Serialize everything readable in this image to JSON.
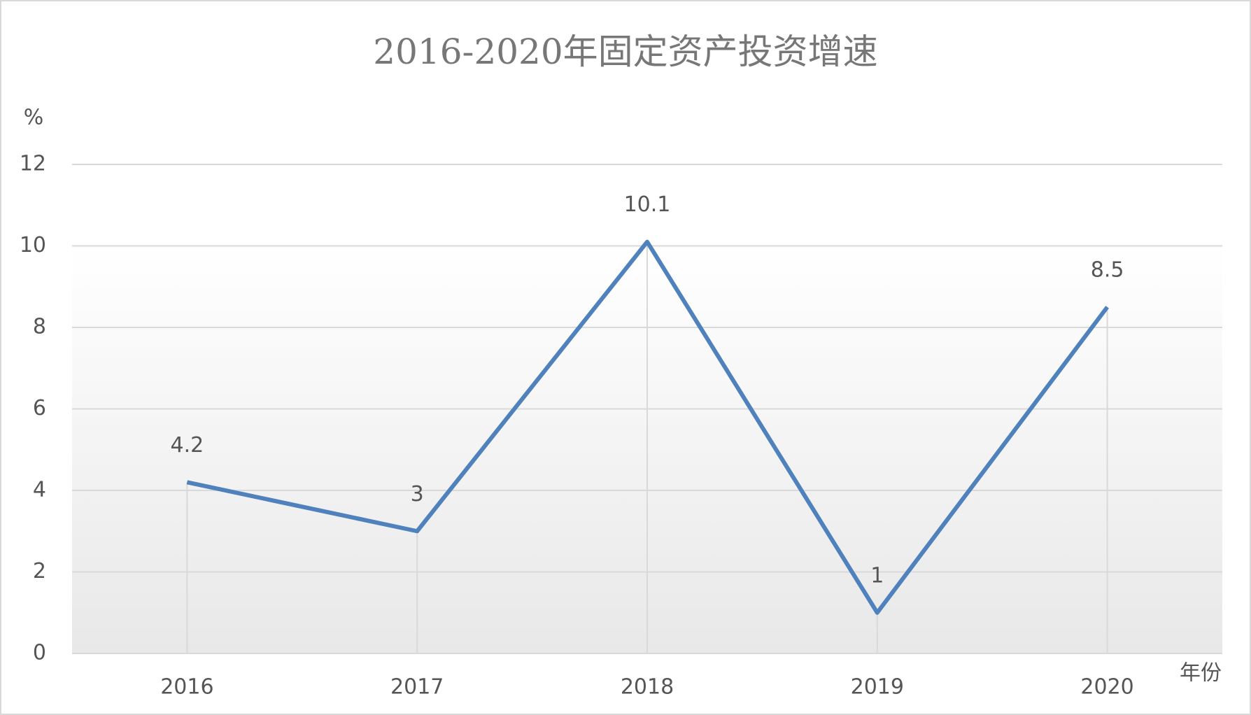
{
  "chart_data": {
    "type": "line",
    "title": "2016-2020年固定资产投资增速",
    "x_label": "年份",
    "y_label": "%",
    "categories": [
      "2016",
      "2017",
      "2018",
      "2019",
      "2020"
    ],
    "series": [
      {
        "name": "固定资产投资增速",
        "color": "#4f81bd",
        "values": [
          4.2,
          3,
          10.1,
          1,
          8.5
        ]
      }
    ],
    "ylim": [
      0,
      12
    ],
    "yticks": [
      0,
      2,
      4,
      6,
      8,
      10,
      12
    ],
    "grid": true
  }
}
